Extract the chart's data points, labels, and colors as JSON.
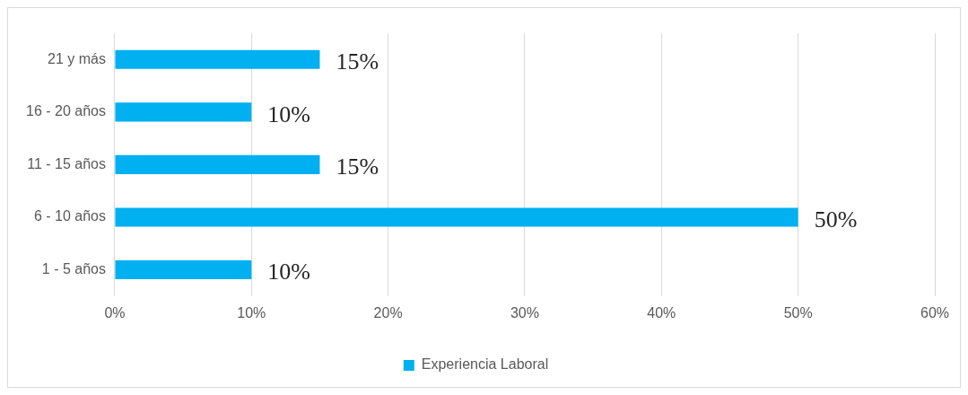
{
  "chart_data": {
    "type": "bar",
    "orientation": "horizontal",
    "categories": [
      "21 y más",
      "16 - 20 años",
      "11 - 15 años",
      "6 - 10 años",
      "1 - 5 años"
    ],
    "series": [
      {
        "name": "Experiencia Laboral",
        "color": "#00b0f0",
        "values": [
          15,
          10,
          15,
          50,
          10
        ],
        "value_labels": [
          "15%",
          "10%",
          "15%",
          "50%",
          "10%"
        ]
      }
    ],
    "xlim": [
      0,
      60
    ],
    "xticks": [
      {
        "value": 0,
        "label": "0%"
      },
      {
        "value": 10,
        "label": "10%"
      },
      {
        "value": 20,
        "label": "20%"
      },
      {
        "value": 30,
        "label": "30%"
      },
      {
        "value": 40,
        "label": "40%"
      },
      {
        "value": 50,
        "label": "50%"
      },
      {
        "value": 60,
        "label": "60%"
      }
    ],
    "grid": "x",
    "legend": "bottom"
  }
}
